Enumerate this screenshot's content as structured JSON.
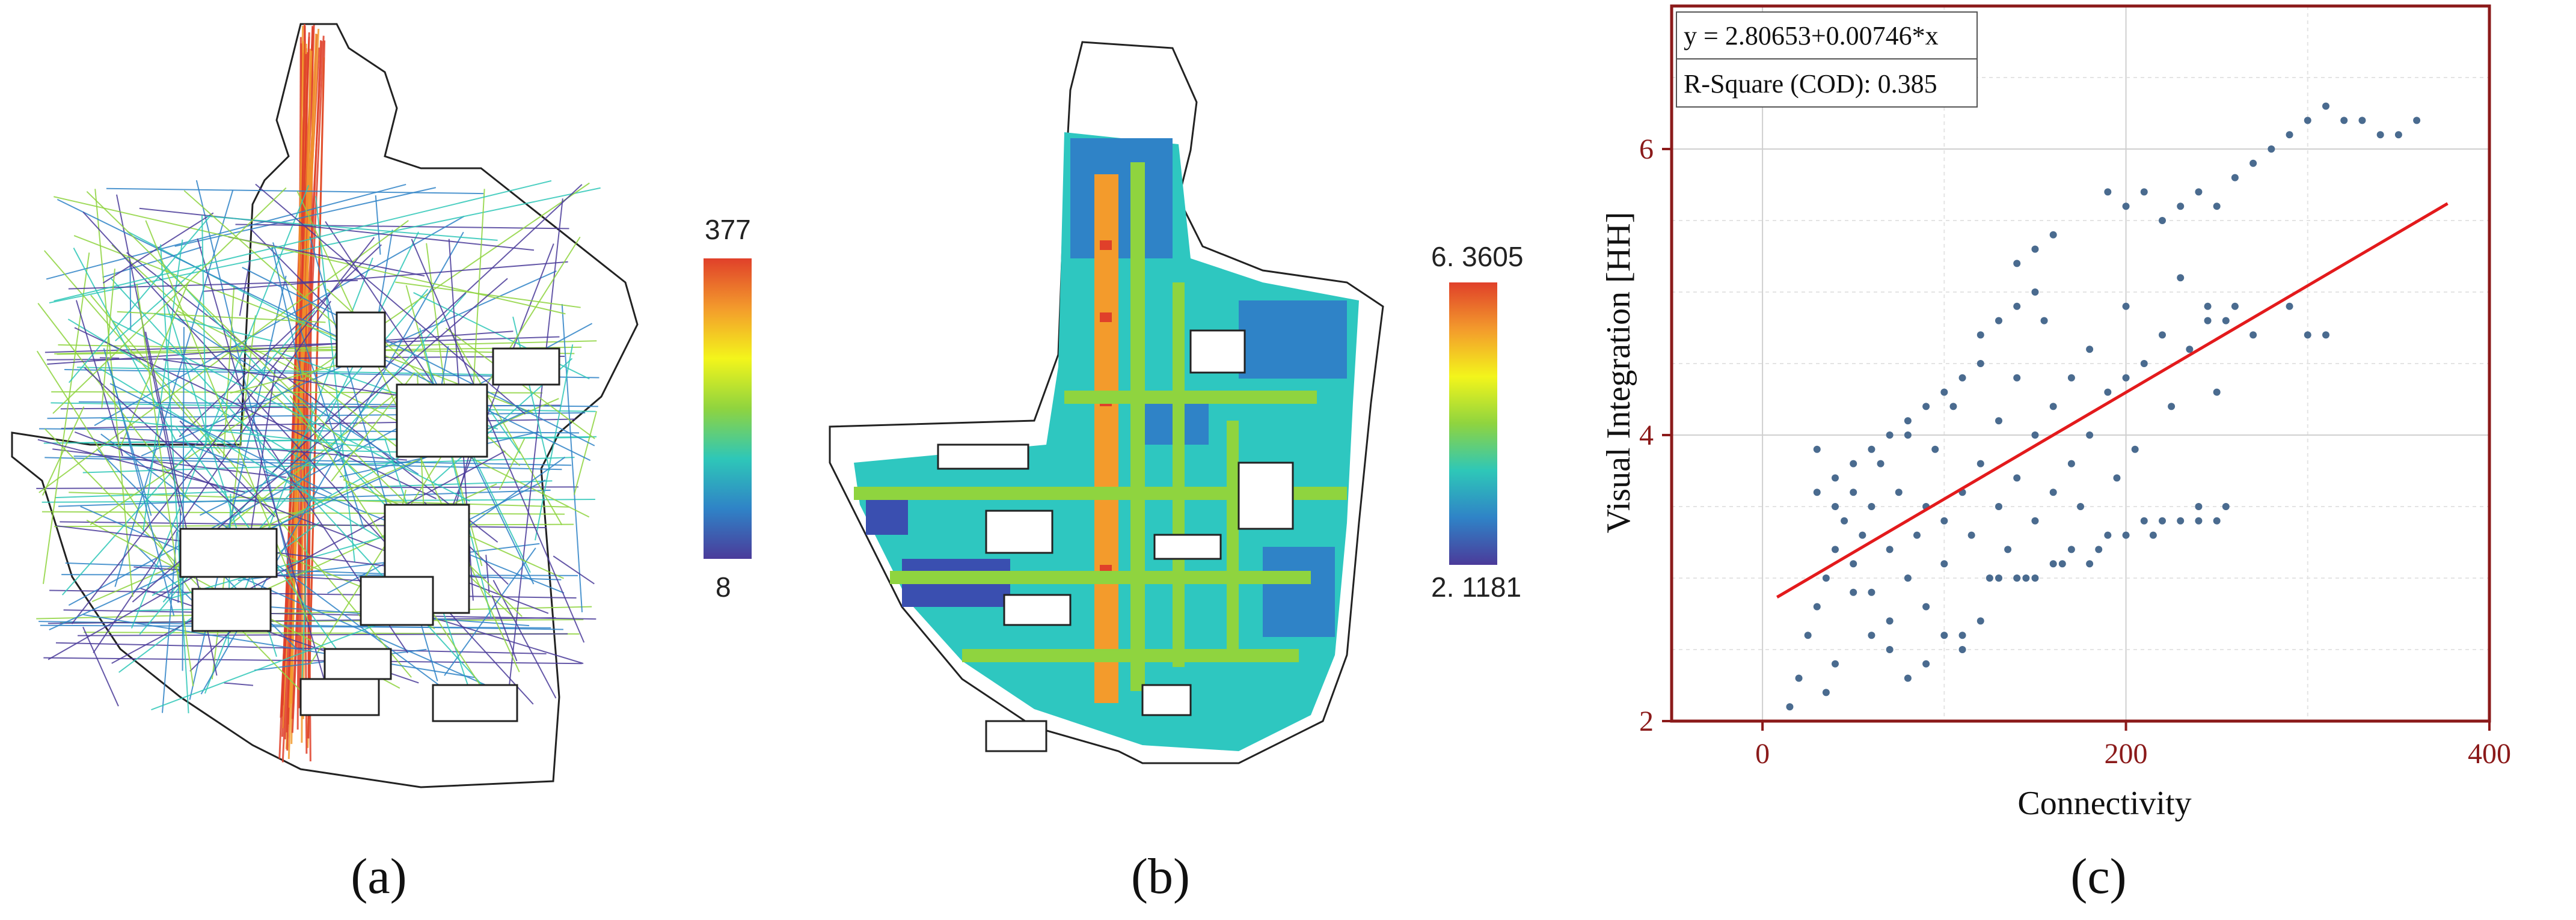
{
  "panels": {
    "a": {
      "caption": "(a)",
      "colorbar": {
        "max_label": "377",
        "min_label": "8"
      }
    },
    "b": {
      "caption": "(b)",
      "colorbar": {
        "max_label": "6. 3605",
        "min_label": "2. 1181"
      }
    },
    "c": {
      "caption": "(c)"
    }
  },
  "colors": {
    "frame": "#8b1a1a",
    "points": "#4a6b8f",
    "fit_line": "#e31a1c",
    "ramp": [
      "#4b3b9a",
      "#2f83c7",
      "#2ec7b8",
      "#8fd43f",
      "#f3f51b",
      "#f39b2c",
      "#e0402a"
    ]
  },
  "chart_data": {
    "type": "scatter",
    "title": "",
    "xlabel": "Connectivity",
    "ylabel": "Visual Integration [HH]",
    "xlim": [
      -50,
      400
    ],
    "ylim": [
      2,
      7
    ],
    "xticks": [
      0,
      200,
      400
    ],
    "yticks": [
      2,
      4,
      6
    ],
    "grid": true,
    "annotation": {
      "equation": "y = 2.80653+0.00746*x",
      "r_square": "R-Square (COD): 0.385",
      "placement": "top-left"
    },
    "fit_line": {
      "intercept": 2.80653,
      "slope": 0.00746,
      "x_range": [
        8,
        377
      ]
    },
    "series": [
      {
        "points": [
          [
            15,
            2.1
          ],
          [
            20,
            2.3
          ],
          [
            25,
            2.6
          ],
          [
            30,
            2.8
          ],
          [
            35,
            3.0
          ],
          [
            40,
            3.2
          ],
          [
            45,
            3.4
          ],
          [
            50,
            3.6
          ],
          [
            30,
            3.9
          ],
          [
            40,
            3.7
          ],
          [
            50,
            3.1
          ],
          [
            55,
            3.3
          ],
          [
            60,
            3.5
          ],
          [
            60,
            2.9
          ],
          [
            65,
            3.8
          ],
          [
            70,
            3.2
          ],
          [
            70,
            2.7
          ],
          [
            75,
            3.6
          ],
          [
            80,
            3.0
          ],
          [
            80,
            4.0
          ],
          [
            85,
            3.3
          ],
          [
            90,
            3.5
          ],
          [
            90,
            2.8
          ],
          [
            95,
            3.9
          ],
          [
            100,
            3.4
          ],
          [
            100,
            3.1
          ],
          [
            105,
            4.2
          ],
          [
            110,
            3.6
          ],
          [
            110,
            2.6
          ],
          [
            115,
            3.3
          ],
          [
            120,
            3.8
          ],
          [
            120,
            4.5
          ],
          [
            125,
            3.0
          ],
          [
            130,
            3.5
          ],
          [
            130,
            4.1
          ],
          [
            135,
            3.2
          ],
          [
            140,
            4.4
          ],
          [
            140,
            3.7
          ],
          [
            145,
            3.0
          ],
          [
            150,
            4.0
          ],
          [
            150,
            3.4
          ],
          [
            155,
            4.8
          ],
          [
            160,
            3.6
          ],
          [
            160,
            4.2
          ],
          [
            165,
            3.1
          ],
          [
            170,
            4.4
          ],
          [
            170,
            3.8
          ],
          [
            175,
            3.5
          ],
          [
            180,
            4.6
          ],
          [
            180,
            4.0
          ],
          [
            185,
            3.2
          ],
          [
            190,
            4.3
          ],
          [
            195,
            3.7
          ],
          [
            200,
            4.9
          ],
          [
            200,
            4.4
          ],
          [
            205,
            3.9
          ],
          [
            210,
            4.5
          ],
          [
            215,
            3.3
          ],
          [
            220,
            4.7
          ],
          [
            225,
            4.2
          ],
          [
            230,
            5.1
          ],
          [
            235,
            4.6
          ],
          [
            240,
            3.4
          ],
          [
            245,
            4.8
          ],
          [
            250,
            4.3
          ],
          [
            255,
            3.5
          ],
          [
            260,
            4.9
          ],
          [
            200,
            5.6
          ],
          [
            210,
            5.7
          ],
          [
            220,
            5.5
          ],
          [
            230,
            5.6
          ],
          [
            240,
            5.7
          ],
          [
            250,
            5.6
          ],
          [
            260,
            5.8
          ],
          [
            270,
            5.9
          ],
          [
            280,
            6.0
          ],
          [
            290,
            6.1
          ],
          [
            300,
            6.2
          ],
          [
            310,
            6.3
          ],
          [
            320,
            6.2
          ],
          [
            330,
            6.2
          ],
          [
            340,
            6.1
          ],
          [
            350,
            6.1
          ],
          [
            360,
            6.2
          ],
          [
            300,
            4.7
          ],
          [
            310,
            4.7
          ],
          [
            290,
            4.9
          ],
          [
            270,
            4.7
          ],
          [
            255,
            4.8
          ],
          [
            245,
            4.9
          ],
          [
            100,
            2.6
          ],
          [
            110,
            2.5
          ],
          [
            120,
            2.7
          ],
          [
            90,
            2.4
          ],
          [
            80,
            2.3
          ],
          [
            70,
            2.5
          ],
          [
            60,
            2.6
          ],
          [
            50,
            2.9
          ],
          [
            40,
            2.4
          ],
          [
            35,
            2.2
          ],
          [
            130,
            3.0
          ],
          [
            140,
            3.0
          ],
          [
            150,
            3.0
          ],
          [
            160,
            3.1
          ],
          [
            170,
            3.2
          ],
          [
            180,
            3.1
          ],
          [
            190,
            3.3
          ],
          [
            200,
            3.3
          ],
          [
            210,
            3.4
          ],
          [
            220,
            3.4
          ],
          [
            230,
            3.4
          ],
          [
            240,
            3.5
          ],
          [
            250,
            3.4
          ],
          [
            30,
            3.6
          ],
          [
            40,
            3.5
          ],
          [
            50,
            3.8
          ],
          [
            60,
            3.9
          ],
          [
            70,
            4.0
          ],
          [
            80,
            4.1
          ],
          [
            90,
            4.2
          ],
          [
            100,
            4.3
          ],
          [
            110,
            4.4
          ],
          [
            120,
            4.7
          ],
          [
            130,
            4.8
          ],
          [
            140,
            4.9
          ],
          [
            150,
            5.0
          ],
          [
            140,
            5.2
          ],
          [
            150,
            5.3
          ],
          [
            160,
            5.4
          ],
          [
            190,
            5.7
          ]
        ]
      }
    ]
  }
}
